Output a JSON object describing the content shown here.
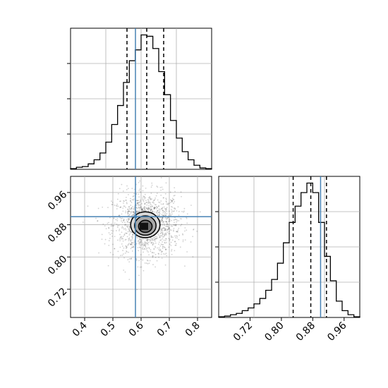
{
  "chart_data": {
    "type": "corner",
    "parameters": [
      {
        "histogram": {
          "range": [
            0.35,
            0.85
          ],
          "counts": [
            0.5,
            1.5,
            2,
            4,
            7,
            12,
            20,
            33,
            47,
            64,
            80,
            88,
            99,
            98,
            89,
            72,
            55,
            36,
            23,
            13,
            7,
            3,
            1,
            0.5
          ],
          "quantiles": [
            0.55,
            0.62,
            0.68
          ],
          "truth": 0.58
        }
      },
      {
        "histogram": {
          "range": [
            0.64,
            1.0
          ],
          "counts": [
            0.5,
            1,
            2,
            3,
            5,
            7,
            10,
            14,
            20,
            28,
            40,
            55,
            70,
            82,
            92,
            99,
            92,
            70,
            45,
            27,
            12,
            5,
            2,
            0.5
          ],
          "quantiles": [
            0.83,
            0.875,
            0.915
          ],
          "truth": 0.9
        }
      }
    ],
    "scatter": {
      "x_range": [
        0.35,
        0.85
      ],
      "y_range": [
        0.65,
        1.0
      ],
      "xticks": [
        "0.4",
        "0.5",
        "0.6",
        "0.7",
        "0.8"
      ],
      "yticks": [
        "0.72",
        "0.80",
        "0.88",
        "0.96"
      ],
      "center": [
        0.62,
        0.88
      ],
      "spread": [
        0.06,
        0.04
      ],
      "contours": [
        {
          "level": 1,
          "rx": 0.052,
          "ry": 0.032,
          "cx": 0.615,
          "cy": 0.88
        },
        {
          "level": 2,
          "rx": 0.038,
          "ry": 0.024,
          "cx": 0.615,
          "cy": 0.878
        },
        {
          "level": 3,
          "rx": 0.024,
          "ry": 0.015,
          "cx": 0.615,
          "cy": 0.876
        }
      ],
      "truth": [
        0.58,
        0.9
      ]
    },
    "diag2_xticks": [
      "0.72",
      "0.80",
      "0.88",
      "0.96"
    ],
    "truth_color": "#4682b4",
    "grid": true
  }
}
